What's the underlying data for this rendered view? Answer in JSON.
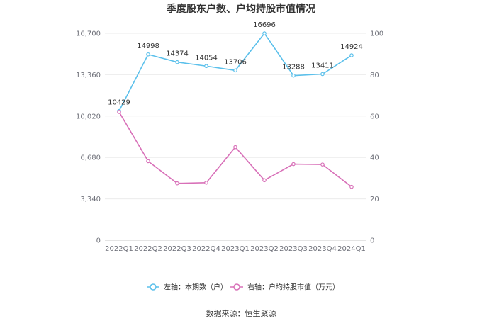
{
  "chart_data": {
    "type": "line",
    "title": "季度股东户数、户均持股市值情况",
    "categories": [
      "2022Q1",
      "2022Q2",
      "2022Q3",
      "2022Q4",
      "2023Q1",
      "2023Q2",
      "2023Q3",
      "2023Q4",
      "2024Q1"
    ],
    "left_axis": {
      "ylim": [
        0,
        16700
      ],
      "ticks": [
        "0",
        "3,340",
        "6,680",
        "10,020",
        "13,360",
        "16,700"
      ]
    },
    "right_axis": {
      "ylim": [
        0,
        100
      ],
      "ticks": [
        "0",
        "20",
        "40",
        "60",
        "80",
        "100"
      ]
    },
    "series": [
      {
        "name": "左轴：本期数（户）",
        "axis": "left",
        "color": "#5bc0eb",
        "values": [
          10429,
          14998,
          14374,
          14054,
          13706,
          16696,
          13288,
          13411,
          14924
        ],
        "show_labels": true
      },
      {
        "name": "右轴：户均持股市值（万元）",
        "axis": "right",
        "color": "#d870b8",
        "values": [
          62,
          38.2,
          27.5,
          27.8,
          45,
          29,
          36.8,
          36.6,
          25.8
        ],
        "show_labels": false
      }
    ],
    "grid": true,
    "legend_position": "bottom"
  },
  "footer": {
    "source": "数据来源：恒生聚源"
  }
}
